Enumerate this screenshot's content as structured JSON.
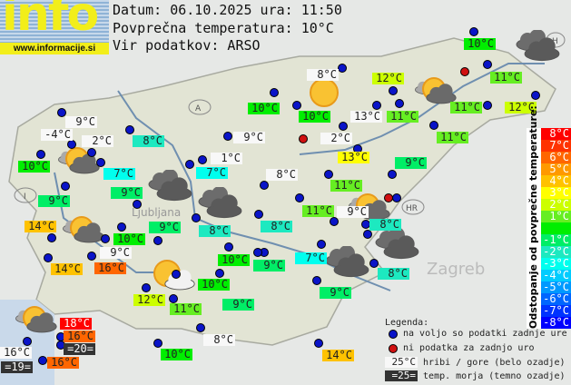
{
  "logo": {
    "word": "info",
    "url": "www.informacije.si"
  },
  "header": {
    "date_line": "Datum: 06.10.2025 ura: 11:50",
    "avg_line": "Povprečna temperatura: 10°C",
    "source_line": "Vir podatkov: ARSO"
  },
  "average_temp": 10,
  "country_markers": [
    "A",
    "I",
    "HR",
    "H"
  ],
  "cities": [
    "Ljubljana",
    "Zagreb"
  ],
  "stations": [
    {
      "label": "9°C",
      "kind": "mountain"
    },
    {
      "label": "-4°C",
      "kind": "mountain"
    },
    {
      "label": "2°C",
      "kind": "mountain"
    },
    {
      "label": "8°C",
      "kind": "valley"
    },
    {
      "label": "10°C",
      "kind": "valley"
    },
    {
      "label": "7°C",
      "kind": "valley"
    },
    {
      "label": "9°C",
      "kind": "valley"
    },
    {
      "label": "9°C",
      "kind": "valley"
    },
    {
      "label": "10°C",
      "kind": "valley"
    },
    {
      "label": "9°C",
      "kind": "mountain"
    },
    {
      "label": "1°C",
      "kind": "mountain"
    },
    {
      "label": "7°C",
      "kind": "valley"
    },
    {
      "label": "8°C",
      "kind": "mountain"
    },
    {
      "label": "10°C",
      "kind": "valley"
    },
    {
      "label": "8°C",
      "kind": "mountain"
    },
    {
      "label": "12°C",
      "kind": "valley"
    },
    {
      "label": "11°C",
      "kind": "valley"
    },
    {
      "label": "10°C",
      "kind": "valley"
    },
    {
      "label": "13°C",
      "kind": "mountain"
    },
    {
      "label": "11°C",
      "kind": "valley"
    },
    {
      "label": "11°C",
      "kind": "valley"
    },
    {
      "label": "12°C",
      "kind": "valley"
    },
    {
      "label": "2°C",
      "kind": "mountain"
    },
    {
      "label": "11°C",
      "kind": "valley"
    },
    {
      "label": "13°C",
      "kind": "valley"
    },
    {
      "label": "9°C",
      "kind": "valley"
    },
    {
      "label": "11°C",
      "kind": "valley"
    },
    {
      "label": "11°C",
      "kind": "valley"
    },
    {
      "label": "9°C",
      "kind": "mountain"
    },
    {
      "label": "8°C",
      "kind": "valley"
    },
    {
      "label": "8°C",
      "kind": "valley"
    },
    {
      "label": "8°C",
      "kind": "valley"
    },
    {
      "label": "9°C",
      "kind": "valley"
    },
    {
      "label": "10°C",
      "kind": "valley"
    },
    {
      "label": "14°C",
      "kind": "valley"
    },
    {
      "label": "9°C",
      "kind": "mountain"
    },
    {
      "label": "14°C",
      "kind": "valley"
    },
    {
      "label": "16°C",
      "kind": "valley"
    },
    {
      "label": "10°C",
      "kind": "valley"
    },
    {
      "label": "9°C",
      "kind": "valley"
    },
    {
      "label": "7°C",
      "kind": "valley"
    },
    {
      "label": "10°C",
      "kind": "valley"
    },
    {
      "label": "12°C",
      "kind": "valley"
    },
    {
      "label": "11°C",
      "kind": "valley"
    },
    {
      "label": "9°C",
      "kind": "valley"
    },
    {
      "label": "9°C",
      "kind": "valley"
    },
    {
      "label": "8°C",
      "kind": "valley"
    },
    {
      "label": "18°C",
      "kind": "valley"
    },
    {
      "label": "16°C",
      "kind": "valley"
    },
    {
      "label": "=20=",
      "kind": "sea"
    },
    {
      "label": "16°C",
      "kind": "mountain"
    },
    {
      "label": "=19=",
      "kind": "sea"
    },
    {
      "label": "16°C",
      "kind": "valley"
    },
    {
      "label": "10°C",
      "kind": "valley"
    },
    {
      "label": "8°C",
      "kind": "mountain"
    },
    {
      "label": "14°C",
      "kind": "valley"
    }
  ],
  "weather_icons": [
    "sun",
    "partly-cloudy",
    "cloud",
    "partly-cloudy",
    "cloud",
    "cloud",
    "partly-cloudy",
    "cloud",
    "partly-cloudy",
    "partly-cloudy-light",
    "cloud",
    "partly-cloudy"
  ],
  "color_scale": {
    "title": "Odstopanje od povprečne temperature:",
    "items": [
      {
        "label": "8°C",
        "dev": 8,
        "color": "#ff0000"
      },
      {
        "label": "7°C",
        "dev": 7,
        "color": "#ff3300"
      },
      {
        "label": "6°C",
        "dev": 6,
        "color": "#ff6600"
      },
      {
        "label": "5°C",
        "dev": 5,
        "color": "#ff9900"
      },
      {
        "label": "4°C",
        "dev": 4,
        "color": "#ffc200"
      },
      {
        "label": "3°C",
        "dev": 3,
        "color": "#ffff00"
      },
      {
        "label": "2°C",
        "dev": 2,
        "color": "#ccff00"
      },
      {
        "label": "1°C",
        "dev": 1,
        "color": "#66ee22"
      },
      {
        "label": "",
        "dev": 0,
        "color": "#00ee00"
      },
      {
        "label": "-1°C",
        "dev": -1,
        "color": "#00ee66"
      },
      {
        "label": "-2°C",
        "dev": -2,
        "color": "#1de9c0"
      },
      {
        "label": "-3°C",
        "dev": -3,
        "color": "#00ffee"
      },
      {
        "label": "-4°C",
        "dev": -4,
        "color": "#00ccff"
      },
      {
        "label": "-5°C",
        "dev": -5,
        "color": "#0099ff"
      },
      {
        "label": "-6°C",
        "dev": -6,
        "color": "#0066ff"
      },
      {
        "label": "-7°C",
        "dev": -7,
        "color": "#0033ff"
      },
      {
        "label": "-8°C",
        "dev": -8,
        "color": "#0000ff"
      }
    ]
  },
  "legend": {
    "title": "Legenda:",
    "blue_dot": "na voljo so podatki zadnje ure",
    "red_dot": "ni podatka za zadnjo uro",
    "mountain_sample": "25°C",
    "mountain_text": "hribi / gore (belo ozadje)",
    "sea_sample": "=25=",
    "sea_text": "temp. morja (temno ozadje)"
  }
}
